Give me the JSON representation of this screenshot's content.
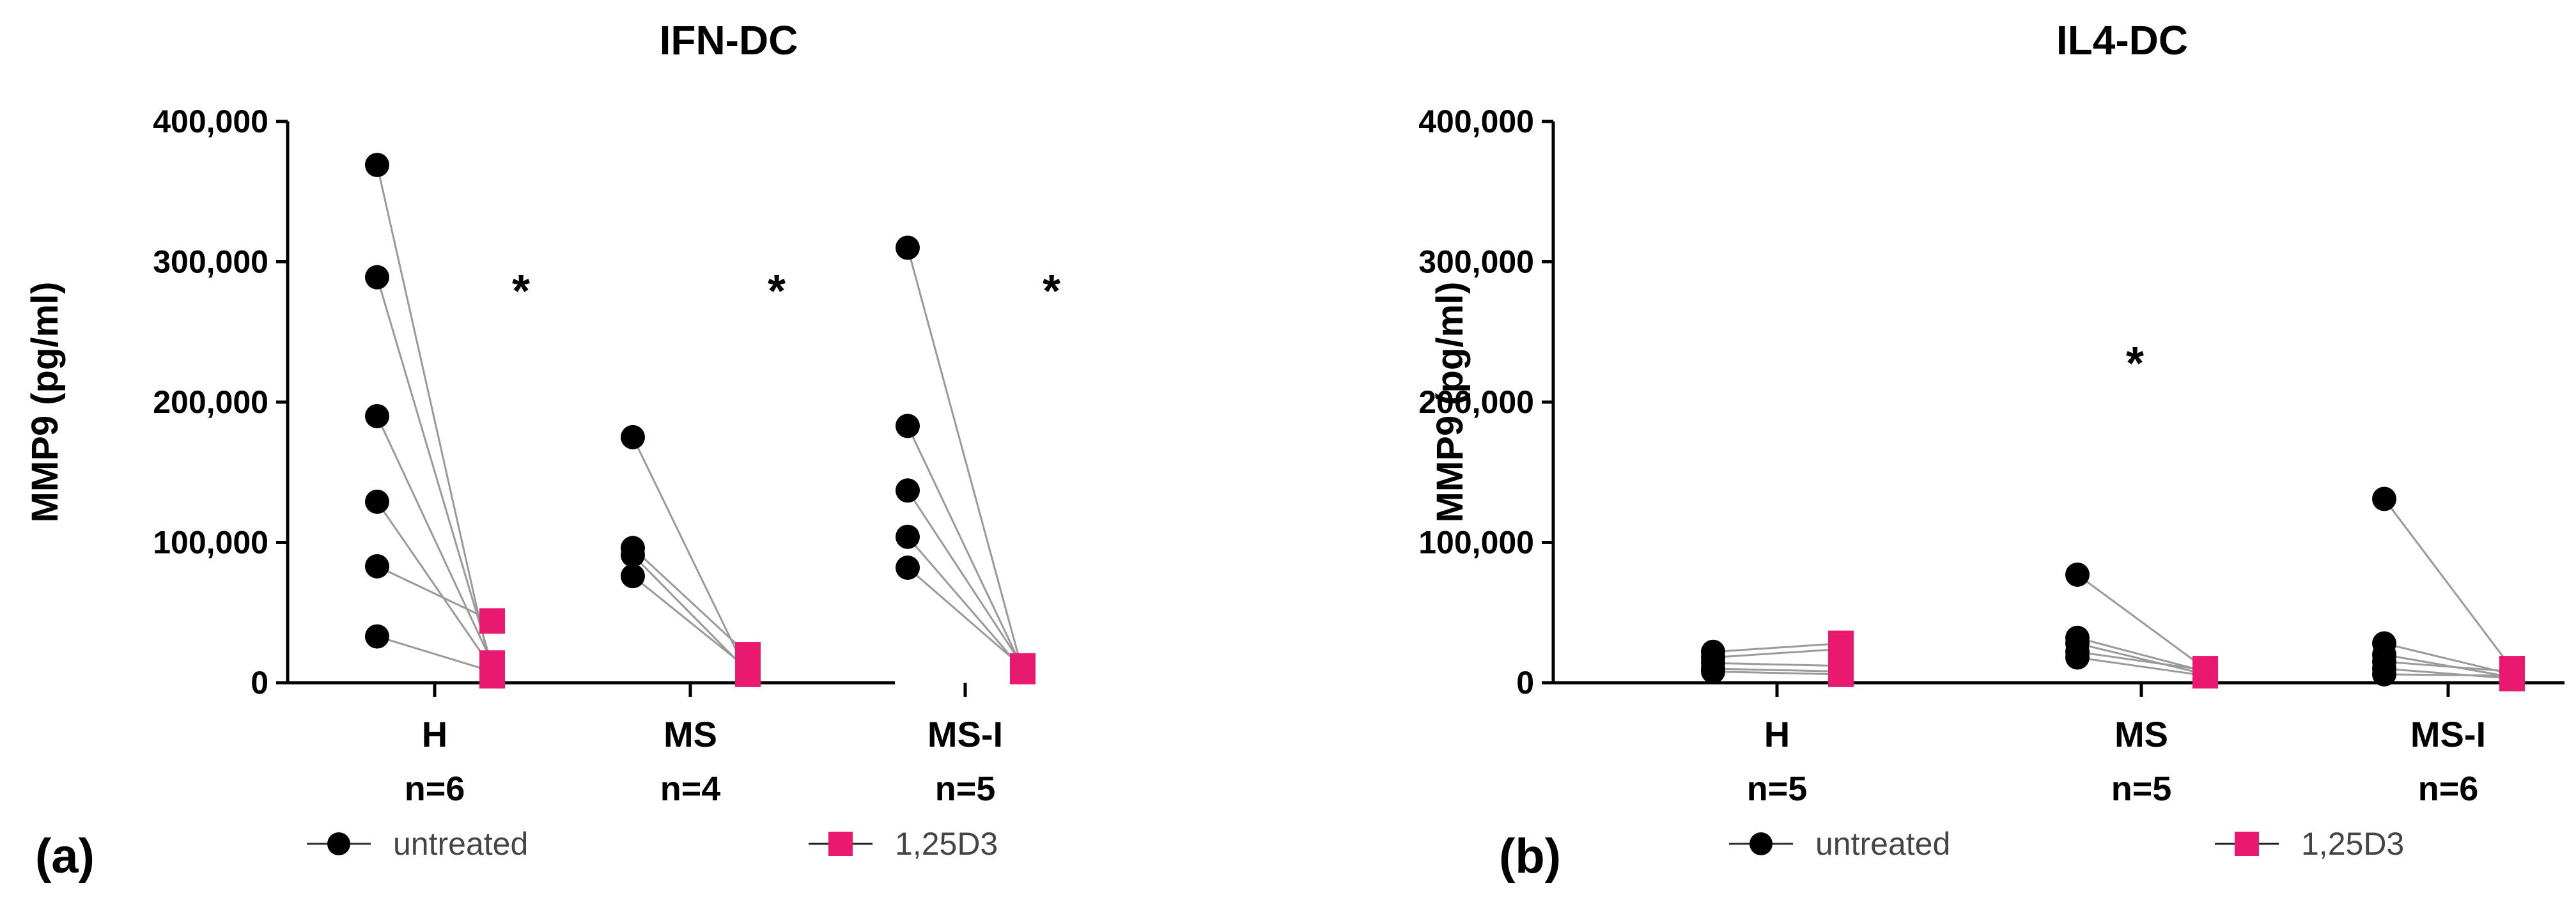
{
  "chart_data": [
    {
      "type": "scatter",
      "panel_label": "(a)",
      "title": "IFN-DC",
      "ylabel": "MMP9 (pg/ml)",
      "xlabel": "",
      "ylim": [
        0,
        400000
      ],
      "yticks": [
        0,
        100000,
        200000,
        300000,
        400000
      ],
      "ytick_labels": [
        "0",
        "100,000",
        "200,000",
        "300,000",
        "400,000"
      ],
      "paired": true,
      "groups": [
        {
          "name": "H",
          "n_label": "n=6",
          "untreated": [
            369000,
            289000,
            190000,
            129000,
            83000,
            33000
          ],
          "treated": [
            5000,
            12000,
            14000,
            10000,
            44000,
            8000
          ],
          "significance": "*"
        },
        {
          "name": "MS",
          "n_label": "n=4",
          "untreated": [
            175000,
            96000,
            91000,
            76000
          ],
          "treated": [
            6000,
            20000,
            8000,
            10000
          ],
          "significance": "*"
        },
        {
          "name": "MS-I",
          "n_label": "n=5",
          "untreated": [
            310000,
            183000,
            137000,
            104000,
            82000
          ],
          "treated": [
            8000,
            10000,
            12000,
            9000,
            11000
          ],
          "significance": "*"
        }
      ],
      "legend": [
        {
          "label": "untreated",
          "marker": "circle",
          "color": "#000000"
        },
        {
          "label": "1,25D3",
          "marker": "square",
          "color": "#e8196e"
        }
      ]
    },
    {
      "type": "scatter",
      "panel_label": "(b)",
      "title": "IL4-DC",
      "ylabel": "MMP9 (pg/ml)",
      "xlabel": "",
      "ylim": [
        0,
        400000
      ],
      "yticks": [
        0,
        100000,
        200000,
        300000,
        400000
      ],
      "ytick_labels": [
        "0",
        "100,000",
        "200,000",
        "300,000",
        "400,000"
      ],
      "paired": true,
      "groups": [
        {
          "name": "H",
          "n_label": "n=5",
          "untreated": [
            22000,
            18000,
            14000,
            10000,
            8000
          ],
          "treated": [
            28000,
            24000,
            12000,
            8000,
            6000
          ],
          "significance": ""
        },
        {
          "name": "MS",
          "n_label": "n=5",
          "untreated": [
            77000,
            32000,
            28000,
            22000,
            18000
          ],
          "treated": [
            10000,
            8000,
            6000,
            9000,
            5000
          ],
          "significance": "*"
        },
        {
          "name": "MS-I",
          "n_label": "n=6",
          "untreated": [
            131000,
            28000,
            20000,
            15000,
            10000,
            6000
          ],
          "treated": [
            10000,
            6000,
            4000,
            8000,
            3000,
            5000
          ],
          "significance": ""
        }
      ],
      "legend": [
        {
          "label": "untreated",
          "marker": "circle",
          "color": "#000000"
        },
        {
          "label": "1,25D3",
          "marker": "square",
          "color": "#e8196e"
        }
      ]
    }
  ],
  "colors": {
    "untreated": "#000000",
    "treated": "#e8196e",
    "pair_line": "#9a9a9a",
    "axis": "#000000"
  }
}
